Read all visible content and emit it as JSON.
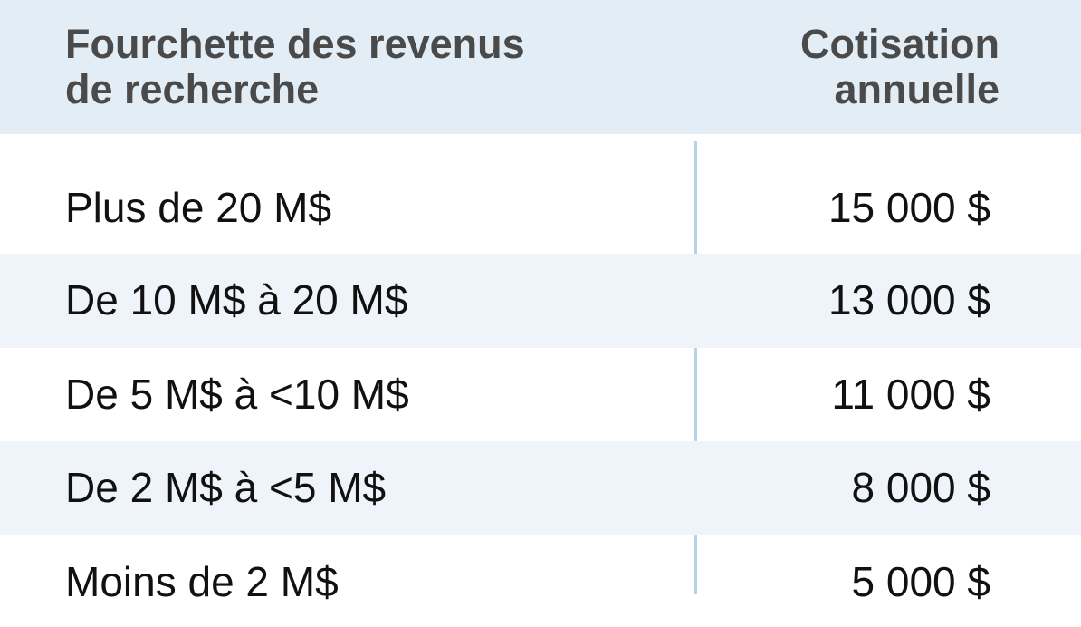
{
  "table": {
    "header": {
      "left_line1": "Fourchette des revenus",
      "left_line2": "de recherche",
      "right_line1": "Cotisation",
      "right_line2": "annuelle"
    },
    "rows": [
      {
        "range": "Plus de 20 M$",
        "fee": "15 000 $"
      },
      {
        "range": "De 10 M$ à 20 M$",
        "fee": "13 000 $"
      },
      {
        "range": "De 5 M$ à <10 M$",
        "fee": "11 000 $"
      },
      {
        "range": "De 2 M$ à <5 M$",
        "fee": "8 000 $"
      },
      {
        "range": "Moins de 2 M$",
        "fee": "5 000 $"
      }
    ],
    "colors": {
      "header_bg": "#e3edf5",
      "alt_row_bg": "#eef4f9",
      "divider": "#b8d2e6",
      "header_text": "#4a4a4a"
    }
  }
}
